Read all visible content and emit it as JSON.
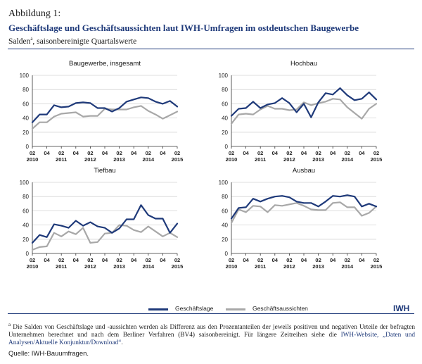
{
  "figure": {
    "label": "Abbildung 1:",
    "title": "Geschäftslage und Geschäftsaussichten laut IWH-Umfragen im ostdeutschen Baugewerbe",
    "subtitle_pre": "Salden",
    "subtitle_sup": "a",
    "subtitle_post": ", saisonbereinigte Quartalswerte"
  },
  "legend": {
    "items": [
      {
        "label": "Geschäftslage",
        "color": "#1f3a7a"
      },
      {
        "label": "Geschäftsaussichten",
        "color": "#a8a8a8"
      }
    ]
  },
  "brand": "IWH",
  "footnote": {
    "marker": "a",
    "text": " Die Salden von Geschäftslage und -aussichten werden als Differenz aus den Prozentanteilen der jeweils positiven und negativen Urteile der befragten Unternehmen berechnet und nach dem Berliner Verfahren (BV4) saisonbereinigt. Für längere Zeitreihen siehe die ",
    "link1": "IWH-Website, „Daten und Analysen/Aktuelle Konjunktur/Download“",
    "tail": "."
  },
  "source": "Quelle:   IWH-Bauumfragen.",
  "chart_data": [
    {
      "type": "line",
      "title": "Baugewerbe, insgesamt",
      "ylim": [
        0,
        100
      ],
      "yticks": [
        0,
        20,
        40,
        60,
        80,
        100
      ],
      "x_quarters": [
        "2010Q2",
        "2010Q3",
        "2010Q4",
        "2011Q1",
        "2011Q2",
        "2011Q3",
        "2011Q4",
        "2012Q1",
        "2012Q2",
        "2012Q3",
        "2012Q4",
        "2013Q1",
        "2013Q2",
        "2013Q3",
        "2013Q4",
        "2014Q1",
        "2014Q2",
        "2014Q3",
        "2014Q4",
        "2015Q1",
        "2015Q2"
      ],
      "xtick_quarters": [
        "02",
        "04",
        "02",
        "04",
        "02",
        "04",
        "02",
        "04",
        "02",
        "04",
        "02"
      ],
      "xtick_years": [
        "2010",
        "",
        "2011",
        "",
        "2012",
        "",
        "2013",
        "",
        "2014",
        "",
        "2015"
      ],
      "grid": true,
      "series": [
        {
          "name": "Geschäftslage",
          "values": [
            34,
            45,
            45,
            58,
            55,
            56,
            61,
            62,
            61,
            54,
            54,
            49,
            54,
            63,
            66,
            69,
            68,
            63,
            60,
            64,
            56
          ]
        },
        {
          "name": "Geschäftsaussichten",
          "values": [
            25,
            34,
            34,
            42,
            46,
            47,
            48,
            42,
            43,
            43,
            53,
            52,
            52,
            52,
            55,
            57,
            50,
            45,
            39,
            44,
            49
          ]
        }
      ]
    },
    {
      "type": "line",
      "title": "Hochbau",
      "ylim": [
        0,
        100
      ],
      "yticks": [
        0,
        20,
        40,
        60,
        80,
        100
      ],
      "x_quarters": [
        "2010Q2",
        "2010Q3",
        "2010Q4",
        "2011Q1",
        "2011Q2",
        "2011Q3",
        "2011Q4",
        "2012Q1",
        "2012Q2",
        "2012Q3",
        "2012Q4",
        "2013Q1",
        "2013Q2",
        "2013Q3",
        "2013Q4",
        "2014Q1",
        "2014Q2",
        "2014Q3",
        "2014Q4",
        "2015Q1",
        "2015Q2"
      ],
      "xtick_quarters": [
        "02",
        "04",
        "02",
        "04",
        "02",
        "04",
        "02",
        "04",
        "02",
        "04",
        "02"
      ],
      "xtick_years": [
        "2010",
        "",
        "2011",
        "",
        "2012",
        "",
        "2013",
        "",
        "2014",
        "",
        "2015"
      ],
      "grid": true,
      "series": [
        {
          "name": "Geschäftslage",
          "values": [
            43,
            53,
            54,
            63,
            54,
            59,
            61,
            68,
            61,
            48,
            60,
            41,
            62,
            75,
            73,
            82,
            72,
            65,
            67,
            76,
            66
          ]
        },
        {
          "name": "Geschäftsaussichten",
          "values": [
            32,
            45,
            46,
            45,
            52,
            57,
            53,
            53,
            51,
            52,
            62,
            58,
            61,
            63,
            67,
            66,
            55,
            47,
            39,
            53,
            60
          ]
        }
      ]
    },
    {
      "type": "line",
      "title": "Tiefbau",
      "ylim": [
        0,
        100
      ],
      "yticks": [
        0,
        20,
        40,
        60,
        80,
        100
      ],
      "x_quarters": [
        "2010Q2",
        "2010Q3",
        "2010Q4",
        "2011Q1",
        "2011Q2",
        "2011Q3",
        "2011Q4",
        "2012Q1",
        "2012Q2",
        "2012Q3",
        "2012Q4",
        "2013Q1",
        "2013Q2",
        "2013Q3",
        "2013Q4",
        "2014Q1",
        "2014Q2",
        "2014Q3",
        "2014Q4",
        "2015Q1",
        "2015Q2"
      ],
      "xtick_quarters": [
        "02",
        "04",
        "02",
        "04",
        "02",
        "04",
        "02",
        "04",
        "02",
        "04",
        "02"
      ],
      "xtick_years": [
        "2010",
        "",
        "2011",
        "",
        "2012",
        "",
        "2013",
        "",
        "2014",
        "",
        "2015"
      ],
      "grid": true,
      "series": [
        {
          "name": "Geschäftslage",
          "values": [
            15,
            26,
            23,
            41,
            39,
            36,
            46,
            39,
            44,
            38,
            36,
            29,
            35,
            48,
            48,
            68,
            54,
            49,
            49,
            29,
            42
          ]
        },
        {
          "name": "Geschäftsaussichten",
          "values": [
            5,
            9,
            10,
            29,
            24,
            31,
            27,
            36,
            15,
            16,
            28,
            29,
            40,
            39,
            33,
            30,
            38,
            31,
            24,
            29,
            23
          ]
        }
      ]
    },
    {
      "type": "line",
      "title": "Ausbau",
      "ylim": [
        0,
        100
      ],
      "yticks": [
        0,
        20,
        40,
        60,
        80,
        100
      ],
      "x_quarters": [
        "2010Q2",
        "2010Q3",
        "2010Q4",
        "2011Q1",
        "2011Q2",
        "2011Q3",
        "2011Q4",
        "2012Q1",
        "2012Q2",
        "2012Q3",
        "2012Q4",
        "2013Q1",
        "2013Q2",
        "2013Q3",
        "2013Q4",
        "2014Q1",
        "2014Q2",
        "2014Q3",
        "2014Q4",
        "2015Q1",
        "2015Q2"
      ],
      "xtick_quarters": [
        "02",
        "04",
        "02",
        "04",
        "02",
        "04",
        "02",
        "04",
        "02",
        "04",
        "02"
      ],
      "xtick_years": [
        "2010",
        "",
        "2011",
        "",
        "2012",
        "",
        "2013",
        "",
        "2014",
        "",
        "2015"
      ],
      "grid": true,
      "series": [
        {
          "name": "Geschäftslage",
          "values": [
            49,
            64,
            65,
            77,
            73,
            77,
            80,
            81,
            79,
            73,
            71,
            71,
            66,
            73,
            81,
            80,
            82,
            80,
            66,
            70,
            66
          ]
        },
        {
          "name": "Geschäftsaussichten",
          "values": [
            43,
            62,
            58,
            67,
            66,
            58,
            68,
            67,
            69,
            71,
            67,
            62,
            61,
            61,
            71,
            72,
            65,
            65,
            53,
            57,
            66
          ]
        }
      ]
    }
  ]
}
